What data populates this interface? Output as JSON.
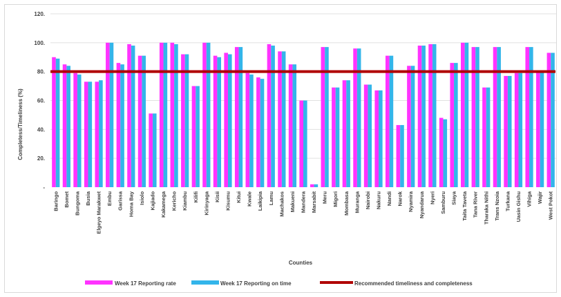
{
  "colors": {
    "reporting_rate": "#ff33ff",
    "reporting_on_time": "#33b5ea",
    "recommended_line": "#b00000",
    "gridline": "#e0e0e0"
  },
  "chart_data": {
    "type": "bar",
    "xlabel": "Counties",
    "ylabel": "Completess/Timeliness (%)",
    "ylim": [
      0,
      120
    ],
    "yticks": [
      {
        "value": 0,
        "label": "-"
      },
      {
        "value": 20,
        "label": "20."
      },
      {
        "value": 40,
        "label": "40."
      },
      {
        "value": 60,
        "label": "60."
      },
      {
        "value": 80,
        "label": "80."
      },
      {
        "value": 100,
        "label": "100."
      },
      {
        "value": 120,
        "label": "120."
      }
    ],
    "grid": true,
    "legend_position": "bottom",
    "categories": [
      "Baringo",
      "Bomet",
      "Bungoma",
      "Busia",
      "Elgeyo Marakwet",
      "Embu",
      "Garissa",
      "Homa Bay",
      "Isiolo",
      "Kajiado",
      "Kakamega",
      "Kericho",
      "Kiambu",
      "Kilifi",
      "Kirinyaga",
      "Kisii",
      "Kisumu",
      "Kitui",
      "Kwale",
      "Laikipia",
      "Lamu",
      "Machakos",
      "Makueni",
      "Mandera",
      "Marsabit",
      "Meru",
      "Migori",
      "Mombasa",
      "Muranga",
      "Nairobi",
      "Nakuru",
      "Nandi",
      "Narok",
      "Nyamira",
      "Nyandarua",
      "Nyeri",
      "Samburu",
      "Siaya",
      "Taita Taveta",
      "Tana River",
      "Tharaka Nithi",
      "Trans Nzoia",
      "Turkana",
      "Uasin Gishu",
      "Vihiga",
      "Wajir",
      "West Pokot"
    ],
    "series": [
      {
        "name": "Week 17 Reporting rate",
        "type": "bar",
        "values": [
          90,
          85,
          79,
          73,
          73,
          100,
          86,
          99,
          91,
          51,
          100,
          100,
          92,
          70,
          100,
          91,
          93,
          97,
          79,
          76,
          99,
          94,
          85,
          60,
          2,
          97,
          69,
          74,
          96,
          71,
          67,
          91,
          43,
          84,
          98,
          99,
          48,
          86,
          100,
          97,
          69,
          97,
          77,
          79,
          97,
          80,
          93
        ]
      },
      {
        "name": "Week 17 Reporting on time",
        "type": "bar",
        "values": [
          89,
          84,
          78,
          73,
          74,
          100,
          85,
          98,
          91,
          51,
          100,
          99,
          92,
          70,
          100,
          90,
          92,
          97,
          78,
          75,
          98,
          94,
          85,
          60,
          2,
          97,
          69,
          74,
          96,
          71,
          67,
          91,
          43,
          84,
          98,
          99,
          47,
          86,
          100,
          97,
          69,
          97,
          77,
          79,
          97,
          80,
          93
        ]
      },
      {
        "name": "Recommended timeliness and completeness",
        "type": "line",
        "value": 80
      }
    ]
  }
}
